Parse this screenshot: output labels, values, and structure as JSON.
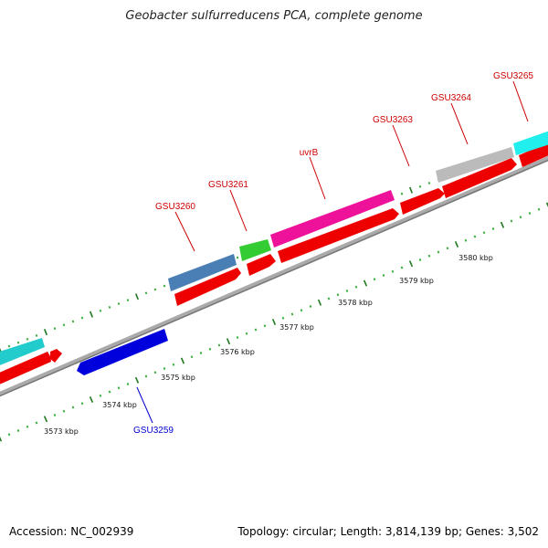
{
  "title": "Geobacter sulfurreducens PCA, complete genome",
  "footer": {
    "accession": "Accession: NC_002939",
    "summary": "Topology: circular; Length: 3,814,139 bp; Genes: 3,502"
  },
  "colors": {
    "strand_red": "#ff0000",
    "label_red": "#cc0000",
    "label_blue": "#0000cc",
    "backbone": "#888888",
    "tick_dot": "#228822"
  },
  "scale": {
    "labels": [
      "3573 kbp",
      "3574 kbp",
      "3575 kbp",
      "3576 kbp",
      "3577 kbp",
      "3578 kbp",
      "3579 kbp",
      "3580 kbp"
    ]
  },
  "genes": {
    "gsu3259": "GSU3259",
    "gsu3260": "GSU3260",
    "gsu3261": "GSU3261",
    "uvrb": "uvrB",
    "gsu3263": "GSU3263",
    "gsu3264": "GSU3264",
    "gsu3265": "GSU3265"
  }
}
